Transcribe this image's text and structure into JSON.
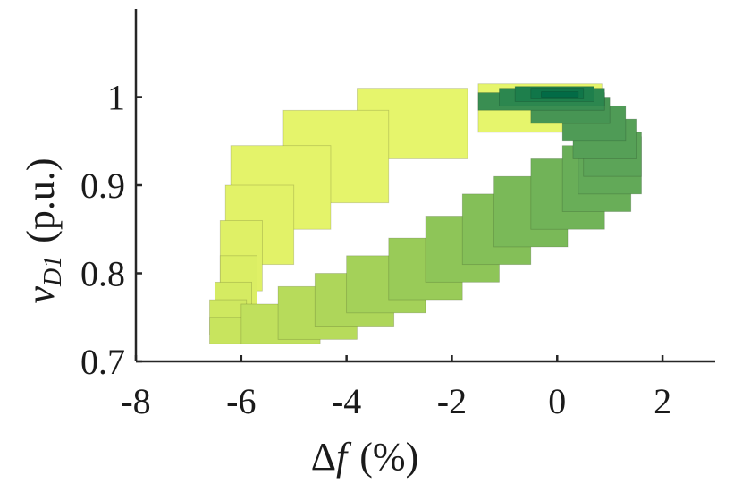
{
  "chart_data": {
    "type": "boxes",
    "xlabel": [
      "Δ",
      "f",
      "(%)"
    ],
    "ylabel": [
      "v",
      "D1",
      "(p.u.)"
    ],
    "xlim": [
      -8,
      3
    ],
    "ylim": [
      0.7,
      1.1
    ],
    "xticks": [
      -8,
      -6,
      -4,
      -2,
      0,
      2
    ],
    "yticks": [
      0.7,
      0.8,
      0.9,
      1
    ],
    "boxes": [
      {
        "x": [
          -1.5,
          0.85
        ],
        "y": [
          0.96,
          1.015
        ],
        "color": "#e6f56c"
      },
      {
        "x": [
          -3.8,
          -1.7
        ],
        "y": [
          0.93,
          1.01
        ],
        "color": "#e6f56c"
      },
      {
        "x": [
          -5.2,
          -3.2
        ],
        "y": [
          0.88,
          0.985
        ],
        "color": "#e5f46b"
      },
      {
        "x": [
          -6.2,
          -4.3
        ],
        "y": [
          0.85,
          0.945
        ],
        "color": "#e4f36a"
      },
      {
        "x": [
          -6.3,
          -5.0
        ],
        "y": [
          0.81,
          0.9
        ],
        "color": "#e2f268"
      },
      {
        "x": [
          -6.4,
          -5.6
        ],
        "y": [
          0.78,
          0.86
        ],
        "color": "#dff066"
      },
      {
        "x": [
          -6.4,
          -5.7
        ],
        "y": [
          0.76,
          0.82
        ],
        "color": "#dbee64"
      },
      {
        "x": [
          -6.5,
          -5.8
        ],
        "y": [
          0.745,
          0.79
        ],
        "color": "#d5eb62"
      },
      {
        "x": [
          -6.6,
          -5.9
        ],
        "y": [
          0.73,
          0.77
        ],
        "color": "#cfe860"
      },
      {
        "x": [
          -6.6,
          -5.5
        ],
        "y": [
          0.72,
          0.75
        ],
        "color": "#c8e45e"
      },
      {
        "x": [
          -6.0,
          -4.5
        ],
        "y": [
          0.72,
          0.765
        ],
        "color": "#c0e05d"
      },
      {
        "x": [
          -5.3,
          -3.8
        ],
        "y": [
          0.725,
          0.785
        ],
        "color": "#b7db5b"
      },
      {
        "x": [
          -4.6,
          -3.1
        ],
        "y": [
          0.74,
          0.8
        ],
        "color": "#aed65a"
      },
      {
        "x": [
          -4.0,
          -2.5
        ],
        "y": [
          0.755,
          0.82
        ],
        "color": "#a4d159"
      },
      {
        "x": [
          -3.2,
          -1.8
        ],
        "y": [
          0.77,
          0.84
        ],
        "color": "#99cb58"
      },
      {
        "x": [
          -2.5,
          -1.1
        ],
        "y": [
          0.79,
          0.865
        ],
        "color": "#8ec558"
      },
      {
        "x": [
          -1.8,
          -0.5
        ],
        "y": [
          0.81,
          0.89
        ],
        "color": "#84bf58"
      },
      {
        "x": [
          -1.2,
          0.2
        ],
        "y": [
          0.83,
          0.91
        ],
        "color": "#7ab958"
      },
      {
        "x": [
          -0.5,
          0.9
        ],
        "y": [
          0.85,
          0.93
        ],
        "color": "#71b358"
      },
      {
        "x": [
          0.1,
          1.4
        ],
        "y": [
          0.87,
          0.945
        ],
        "color": "#69ae58"
      },
      {
        "x": [
          0.4,
          1.6
        ],
        "y": [
          0.89,
          0.955
        ],
        "color": "#62a958"
      },
      {
        "x": [
          0.5,
          1.6
        ],
        "y": [
          0.91,
          0.96
        ],
        "color": "#5ca458"
      },
      {
        "x": [
          0.3,
          1.5
        ],
        "y": [
          0.93,
          0.975
        ],
        "color": "#56a057"
      },
      {
        "x": [
          0.1,
          1.3
        ],
        "y": [
          0.95,
          0.99
        ],
        "color": "#4f9b56"
      },
      {
        "x": [
          -0.5,
          1.0
        ],
        "y": [
          0.97,
          1.0
        ],
        "color": "#479554"
      },
      {
        "x": [
          -1.5,
          0.9
        ],
        "y": [
          0.985,
          1.005
        ],
        "color": "#3a8e52"
      },
      {
        "x": [
          -1.1,
          0.9
        ],
        "y": [
          0.99,
          1.01
        ],
        "color": "#2c874f"
      },
      {
        "x": [
          -0.8,
          0.7
        ],
        "y": [
          0.995,
          1.012
        ],
        "color": "#1e7f4c"
      },
      {
        "x": [
          -0.5,
          0.5
        ],
        "y": [
          0.998,
          1.01
        ],
        "color": "#107649"
      },
      {
        "x": [
          -0.3,
          0.4
        ],
        "y": [
          1.0,
          1.006
        ],
        "color": "#026b46"
      }
    ]
  }
}
